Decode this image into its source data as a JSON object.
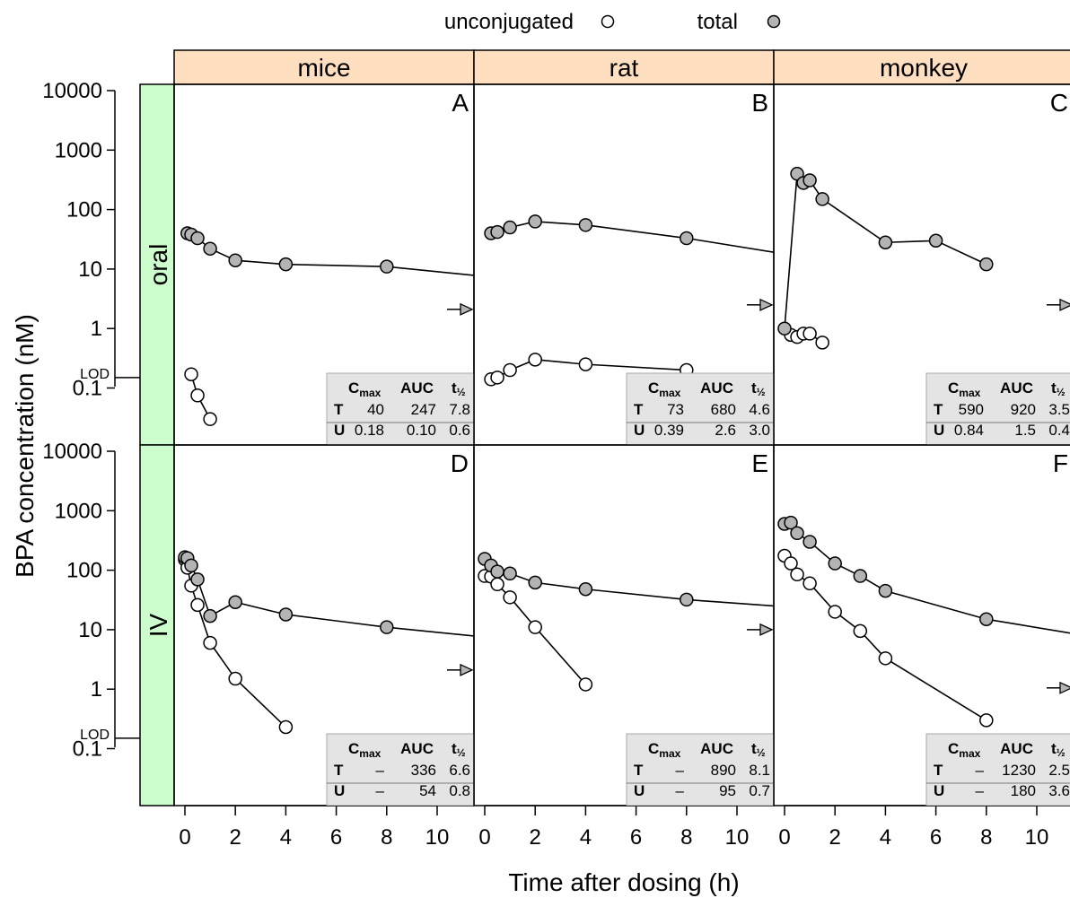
{
  "legend": {
    "items": [
      {
        "label": "unconjugated",
        "fill": "#ffffff"
      },
      {
        "label": "total",
        "fill": "#b4b4b4"
      }
    ]
  },
  "axes": {
    "ylabel": "BPA concentration (nM)",
    "xlabel": "Time after dosing (h)",
    "yticks": [
      "10000",
      "1000",
      "100",
      "10",
      "1",
      "0.1"
    ],
    "lod_label": "LOD",
    "xticks": [
      "0",
      "2",
      "4",
      "6",
      "8",
      "10"
    ]
  },
  "columns": [
    "mice",
    "rat",
    "monkey"
  ],
  "rows": [
    "oral",
    "IV"
  ],
  "colors": {
    "strip_column": "#ffdfbf",
    "strip_row": "#cdfccd",
    "table_bg": "#e4e4e4",
    "total_fill": "#b4b4b4"
  },
  "table_headers": {
    "cmax_main": "C",
    "cmax_sub": "max",
    "auc": "AUC",
    "thalf_main": "t",
    "thalf_sub": "½"
  },
  "chart_data": {
    "type": "scatter",
    "xlabel": "Time after dosing (h)",
    "ylabel": "BPA concentration (nM)",
    "yscale": "log",
    "xlim": [
      -0.5,
      11.5
    ],
    "ylim": [
      0.01,
      10000
    ],
    "lod": 0.15,
    "panels": [
      {
        "letter": "A",
        "row": "oral",
        "column": "mice",
        "total": {
          "x": [
            0.1,
            0.25,
            0.5,
            1,
            2,
            4,
            8
          ],
          "y": [
            40,
            38,
            33,
            22,
            14,
            12,
            11
          ],
          "line_to": [
            11.5,
            7.8
          ]
        },
        "unconjugated": {
          "x": [
            0.25,
            0.5,
            1
          ],
          "y": [
            0.17,
            0.075,
            0.03
          ]
        },
        "arrow_y": 2.1,
        "table": {
          "T": [
            "40",
            "247",
            "7.8"
          ],
          "U": [
            "0.18",
            "0.10",
            "0.6"
          ]
        }
      },
      {
        "letter": "B",
        "row": "oral",
        "column": "rat",
        "total": {
          "x": [
            0.25,
            0.5,
            1,
            2,
            4,
            8
          ],
          "y": [
            40,
            42,
            50,
            63,
            55,
            33
          ],
          "line_to": [
            11.5,
            19
          ]
        },
        "unconjugated": {
          "x": [
            0.25,
            0.5,
            1,
            2,
            4,
            8
          ],
          "y": [
            0.14,
            0.15,
            0.2,
            0.3,
            0.25,
            0.2
          ]
        },
        "arrow_y": 2.5,
        "table": {
          "T": [
            "73",
            "680",
            "4.6"
          ],
          "U": [
            "0.39",
            "2.6",
            "3.0"
          ]
        }
      },
      {
        "letter": "C",
        "row": "oral",
        "column": "monkey",
        "total": {
          "x": [
            0,
            0.5,
            0.75,
            1,
            1.5,
            4,
            6,
            8
          ],
          "y": [
            1,
            400,
            280,
            310,
            150,
            28,
            30,
            12
          ]
        },
        "unconjugated": {
          "x": [
            0.25,
            0.5,
            0.75,
            1,
            1.5
          ],
          "y": [
            0.78,
            0.72,
            0.82,
            0.82,
            0.58
          ]
        },
        "arrow_y": 2.5,
        "table": {
          "T": [
            "590",
            "920",
            "3.5"
          ],
          "U": [
            "0.84",
            "1.5",
            "0.4"
          ]
        }
      },
      {
        "letter": "D",
        "row": "IV",
        "column": "mice",
        "total": {
          "x": [
            0,
            0.1,
            0.25,
            0.5,
            1,
            2,
            4,
            8
          ],
          "y": [
            165,
            160,
            120,
            70,
            17,
            29,
            18,
            11
          ],
          "line_to": [
            11.5,
            7.8
          ]
        },
        "unconjugated": {
          "x": [
            0,
            0.1,
            0.25,
            0.5,
            1,
            2,
            4
          ],
          "y": [
            150,
            110,
            55,
            26,
            6,
            1.5,
            0.23
          ]
        },
        "arrow_y": 2.1,
        "table": {
          "T": [
            "–",
            "336",
            "6.6"
          ],
          "U": [
            "–",
            "54",
            "0.8"
          ]
        }
      },
      {
        "letter": "E",
        "row": "IV",
        "column": "rat",
        "total": {
          "x": [
            0,
            0.25,
            0.5,
            1,
            2,
            4,
            8
          ],
          "y": [
            155,
            120,
            95,
            88,
            62,
            48,
            32
          ],
          "line_to": [
            11.5,
            25
          ]
        },
        "unconjugated": {
          "x": [
            0,
            0.25,
            0.5,
            1,
            2,
            4
          ],
          "y": [
            80,
            78,
            58,
            35,
            11,
            1.2
          ]
        },
        "arrow_y": 10,
        "table": {
          "T": [
            "–",
            "890",
            "8.1"
          ],
          "U": [
            "–",
            "95",
            "0.7"
          ]
        }
      },
      {
        "letter": "F",
        "row": "IV",
        "column": "monkey",
        "total": {
          "x": [
            0,
            0.25,
            0.5,
            1,
            2,
            3,
            4,
            8
          ],
          "y": [
            600,
            630,
            420,
            300,
            130,
            80,
            45,
            15
          ],
          "line_to": [
            11.5,
            8.5
          ]
        },
        "unconjugated": {
          "x": [
            0,
            0.25,
            0.5,
            1,
            2,
            3,
            4,
            8
          ],
          "y": [
            175,
            130,
            85,
            60,
            20,
            9.5,
            3.3,
            0.3
          ]
        },
        "arrow_y": 1.05,
        "table": {
          "T": [
            "–",
            "1230",
            "2.5"
          ],
          "U": [
            "–",
            "180",
            "3.6"
          ]
        }
      }
    ]
  }
}
